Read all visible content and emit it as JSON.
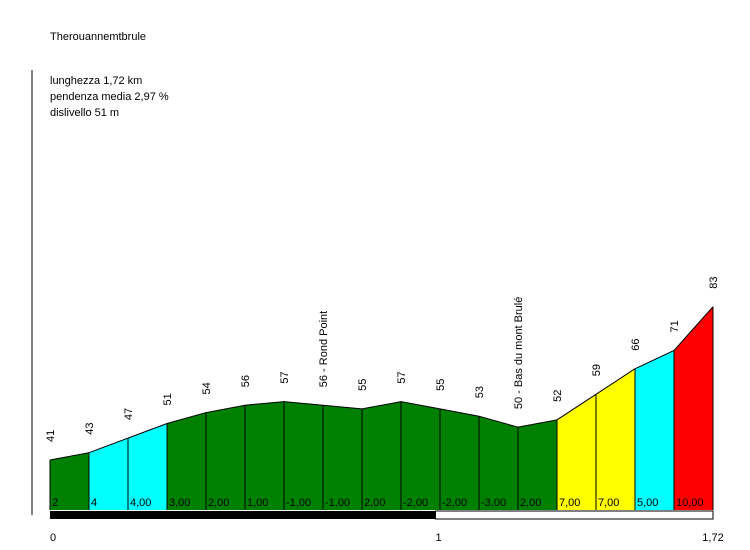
{
  "chart_data": {
    "type": "area",
    "title": "Therouannemtbrule",
    "stats": [
      "lunghezza 1,72 km",
      "pendenza media 2,97 %",
      "dislivello 51 m"
    ],
    "x_km": [
      0,
      0.1,
      0.2,
      0.3,
      0.4,
      0.5,
      0.6,
      0.7,
      0.8,
      0.9,
      1.0,
      1.1,
      1.2,
      1.3,
      1.4,
      1.5,
      1.6,
      1.72
    ],
    "elevations": [
      41,
      43,
      47,
      51,
      54,
      56,
      57,
      56,
      55,
      57,
      55,
      53,
      50,
      52,
      59,
      66,
      71,
      83
    ],
    "elevation_labels": [
      "41",
      "43",
      "47",
      "51",
      "54",
      "56",
      "57",
      "56 - Rond Point",
      "55",
      "57",
      "55",
      "53",
      "50 - Bas du mont Brulé",
      "52",
      "59",
      "66",
      "71",
      "83"
    ],
    "segment_gradients": [
      "2",
      "4",
      "4,00",
      "3,00",
      "2,00",
      "1,00",
      "-1,00",
      "-1,00",
      "2,00",
      "-2,00",
      "-2,00",
      "-3,00",
      "2,00",
      "7,00",
      "7,00",
      "5,00",
      "10,00"
    ],
    "segment_colors": [
      "#008000",
      "#00FFFF",
      "#00FFFF",
      "#008000",
      "#008000",
      "#008000",
      "#008000",
      "#008000",
      "#008000",
      "#008000",
      "#008000",
      "#008000",
      "#008000",
      "#FFFF00",
      "#FFFF00",
      "#00FFFF",
      "#FF0000"
    ],
    "x_ticks": [
      "0",
      "1",
      "1,72"
    ],
    "x_range_km": [
      0,
      1.72
    ]
  }
}
